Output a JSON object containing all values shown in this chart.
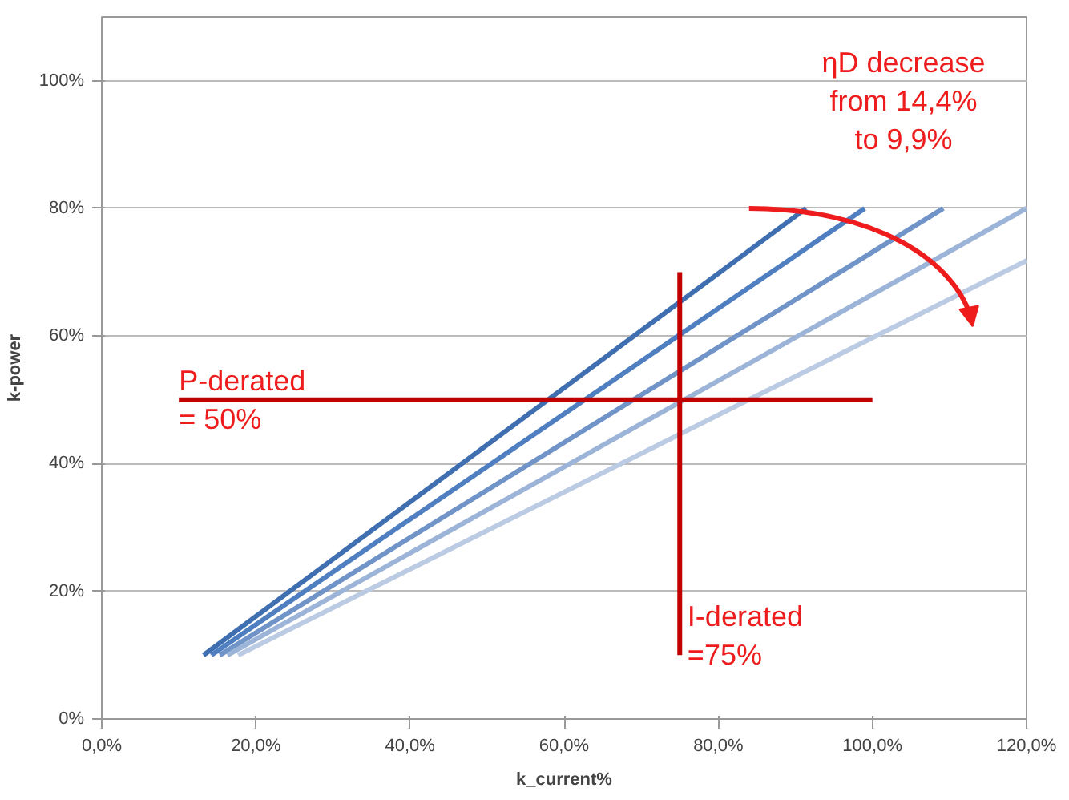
{
  "chart_data": {
    "type": "line",
    "xlabel": "k_current%",
    "ylabel": "k-power",
    "xlim": [
      0,
      120
    ],
    "ylim": [
      0,
      110
    ],
    "xticks": [
      {
        "value": 0,
        "label": "0,0%"
      },
      {
        "value": 20,
        "label": "20,0%"
      },
      {
        "value": 40,
        "label": "40,0%"
      },
      {
        "value": 60,
        "label": "60,0%"
      },
      {
        "value": 80,
        "label": "80,0%"
      },
      {
        "value": 100,
        "label": "100,0%"
      },
      {
        "value": 120,
        "label": "120,0%"
      }
    ],
    "yticks": [
      {
        "value": 0,
        "label": "0%"
      },
      {
        "value": 20,
        "label": "20%"
      },
      {
        "value": 40,
        "label": "40%"
      },
      {
        "value": 60,
        "label": "60%"
      },
      {
        "value": 80,
        "label": "80%"
      },
      {
        "value": 100,
        "label": "100%"
      }
    ],
    "grid": "y",
    "marker": "none",
    "line_style": "solid",
    "series": [
      {
        "color": "#3f6fb0",
        "x": [
          13.2,
          91.4
        ],
        "values": [
          10,
          80
        ]
      },
      {
        "color": "#4f7fc0",
        "x": [
          14.2,
          99
        ],
        "values": [
          10,
          80
        ]
      },
      {
        "color": "#7094c8",
        "x": [
          15.3,
          109.2
        ],
        "values": [
          10,
          80
        ]
      },
      {
        "color": "#9cb4d8",
        "x": [
          16.3,
          120
        ],
        "values": [
          10,
          80
        ]
      },
      {
        "color": "#bccbe4",
        "x": [
          17.7,
          120
        ],
        "values": [
          10,
          71.8
        ]
      },
      {
        "color": "#c00000",
        "x": [
          10,
          100
        ],
        "values": [
          50,
          50
        ]
      },
      {
        "color": "#c00000",
        "x": [
          75,
          75
        ],
        "values": [
          10,
          70
        ]
      }
    ],
    "annotations": [
      "ηD decrease\nfrom 14,4%\nto 9,9%",
      {
        "text": "P-derated\n= 50%",
        "x": 10,
        "y": 50
      },
      {
        "text": "I-derated\n=75%",
        "x": 76,
        "y": 13
      }
    ]
  }
}
